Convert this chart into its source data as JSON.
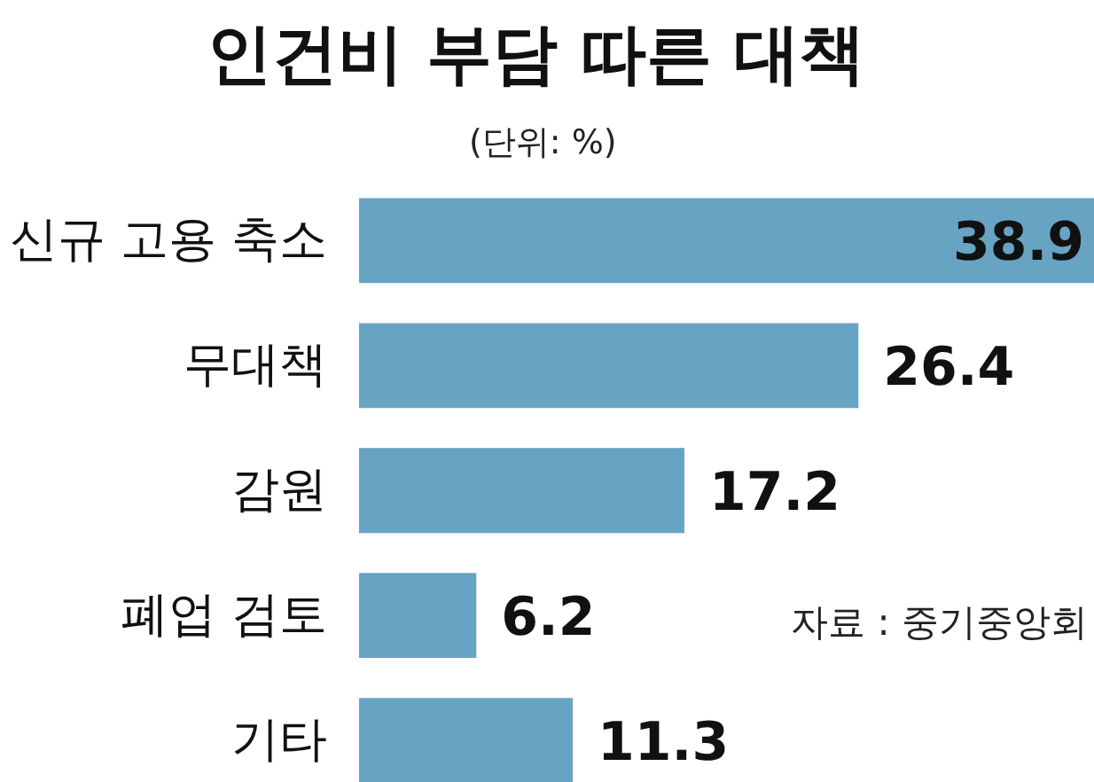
{
  "chart_data": {
    "type": "bar",
    "orientation": "horizontal",
    "title": "인건비 부담 따른 대책",
    "subtitle": "(단위: %)",
    "categories": [
      "신규 고용 축소",
      "무대책",
      "감원",
      "폐업 검토",
      "기타"
    ],
    "values": [
      38.9,
      26.4,
      17.2,
      6.2,
      11.3
    ],
    "color": "#67a4c4",
    "data_labels": true,
    "annotations": [
      "자료 : 중기중앙회"
    ]
  }
}
